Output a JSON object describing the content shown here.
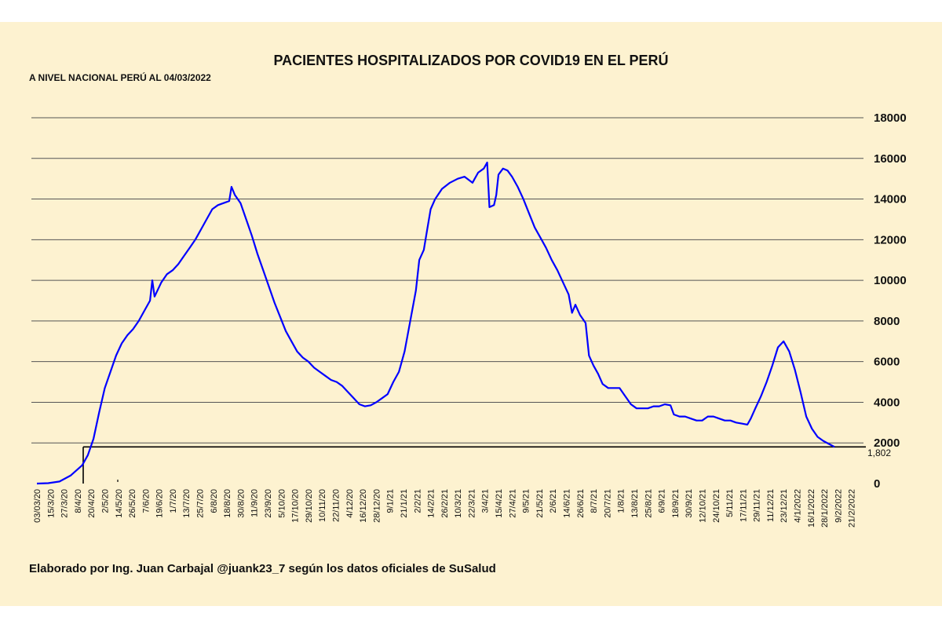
{
  "chart_data": {
    "type": "line",
    "title": "PACIENTES HOSPITALIZADOS POR COVID19 EN EL PERÚ",
    "subtitle": "A NIVEL NACIONAL PERÚ AL 04/03/2022",
    "credit": "Elaborado por Ing. Juan Carbajal @juank23_7 según los datos oficiales de SuSalud",
    "ylim": [
      0,
      18000
    ],
    "y_ticks": [
      "0",
      "2000",
      "4000",
      "6000",
      "8000",
      "10000",
      "12000",
      "14000",
      "16000",
      "18000"
    ],
    "x_ticks": [
      "03/03/20",
      "15/3/20",
      "27/3/20",
      "8/4/20",
      "20/4/20",
      "2/5/20",
      "14/5/20",
      "26/5/20",
      "7/6/20",
      "19/6/20",
      "1/7/20",
      "13/7/20",
      "25/7/20",
      "6/8/20",
      "18/8/20",
      "30/8/20",
      "11/9/20",
      "23/9/20",
      "5/10/20",
      "17/10/20",
      "29/10/20",
      "10/11/20",
      "22/11/20",
      "4/12/20",
      "16/12/20",
      "28/12/20",
      "9/1/21",
      "21/1/21",
      "2/2/21",
      "14/2/21",
      "26/2/21",
      "10/3/21",
      "22/3/21",
      "3/4/21",
      "15/4/21",
      "27/4/21",
      "9/5/21",
      "21/5/21",
      "2/6/21",
      "14/6/21",
      "26/6/21",
      "8/7/21",
      "20/7/21",
      "1/8/21",
      "13/8/21",
      "25/8/21",
      "6/9/21",
      "18/9/21",
      "30/9/21",
      "12/10/21",
      "24/10/21",
      "5/11/21",
      "17/11/21",
      "29/11/21",
      "11/12/21",
      "23/12/21",
      "4/1/2022",
      "16/1/2022",
      "28/1/2022",
      "9/2/2022",
      "21/2/2022"
    ],
    "x_tick_interval_days": 12,
    "total_days": 732,
    "series": [
      {
        "name": "Pacientes hospitalizados",
        "color": "#0000ff",
        "points": [
          [
            0,
            0
          ],
          [
            10,
            20
          ],
          [
            20,
            100
          ],
          [
            30,
            400
          ],
          [
            40,
            900
          ],
          [
            45,
            1400
          ],
          [
            50,
            2200
          ],
          [
            55,
            3500
          ],
          [
            60,
            4700
          ],
          [
            65,
            5500
          ],
          [
            70,
            6300
          ],
          [
            75,
            6900
          ],
          [
            80,
            7300
          ],
          [
            85,
            7600
          ],
          [
            90,
            8000
          ],
          [
            95,
            8500
          ],
          [
            100,
            9000
          ],
          [
            102,
            10000
          ],
          [
            104,
            9200
          ],
          [
            110,
            9900
          ],
          [
            115,
            10300
          ],
          [
            120,
            10500
          ],
          [
            125,
            10800
          ],
          [
            130,
            11200
          ],
          [
            135,
            11600
          ],
          [
            140,
            12000
          ],
          [
            145,
            12500
          ],
          [
            150,
            13000
          ],
          [
            155,
            13500
          ],
          [
            160,
            13700
          ],
          [
            165,
            13800
          ],
          [
            170,
            13900
          ],
          [
            172,
            14600
          ],
          [
            175,
            14200
          ],
          [
            180,
            13800
          ],
          [
            185,
            13000
          ],
          [
            190,
            12200
          ],
          [
            195,
            11300
          ],
          [
            200,
            10500
          ],
          [
            205,
            9700
          ],
          [
            210,
            8900
          ],
          [
            215,
            8200
          ],
          [
            220,
            7500
          ],
          [
            225,
            7000
          ],
          [
            230,
            6500
          ],
          [
            235,
            6200
          ],
          [
            240,
            6000
          ],
          [
            245,
            5700
          ],
          [
            250,
            5500
          ],
          [
            255,
            5300
          ],
          [
            260,
            5100
          ],
          [
            265,
            5000
          ],
          [
            270,
            4800
          ],
          [
            275,
            4500
          ],
          [
            280,
            4200
          ],
          [
            285,
            3900
          ],
          [
            290,
            3800
          ],
          [
            295,
            3850
          ],
          [
            300,
            4000
          ],
          [
            305,
            4200
          ],
          [
            310,
            4400
          ],
          [
            315,
            5000
          ],
          [
            320,
            5500
          ],
          [
            325,
            6500
          ],
          [
            330,
            8000
          ],
          [
            335,
            9500
          ],
          [
            338,
            11000
          ],
          [
            342,
            11500
          ],
          [
            345,
            12500
          ],
          [
            348,
            13500
          ],
          [
            352,
            14000
          ],
          [
            358,
            14500
          ],
          [
            365,
            14800
          ],
          [
            372,
            15000
          ],
          [
            378,
            15100
          ],
          [
            385,
            14800
          ],
          [
            390,
            15300
          ],
          [
            395,
            15500
          ],
          [
            398,
            15800
          ],
          [
            400,
            13600
          ],
          [
            404,
            13700
          ],
          [
            406,
            14200
          ],
          [
            408,
            15200
          ],
          [
            412,
            15500
          ],
          [
            416,
            15400
          ],
          [
            420,
            15100
          ],
          [
            425,
            14600
          ],
          [
            430,
            14000
          ],
          [
            435,
            13300
          ],
          [
            440,
            12600
          ],
          [
            445,
            12100
          ],
          [
            450,
            11600
          ],
          [
            455,
            11000
          ],
          [
            460,
            10500
          ],
          [
            465,
            9900
          ],
          [
            470,
            9300
          ],
          [
            473,
            8400
          ],
          [
            476,
            8800
          ],
          [
            480,
            8300
          ],
          [
            485,
            7900
          ],
          [
            488,
            6300
          ],
          [
            492,
            5800
          ],
          [
            496,
            5400
          ],
          [
            500,
            4900
          ],
          [
            505,
            4700
          ],
          [
            510,
            4700
          ],
          [
            515,
            4700
          ],
          [
            520,
            4300
          ],
          [
            525,
            3900
          ],
          [
            530,
            3700
          ],
          [
            535,
            3700
          ],
          [
            540,
            3700
          ],
          [
            545,
            3800
          ],
          [
            550,
            3800
          ],
          [
            555,
            3900
          ],
          [
            560,
            3850
          ],
          [
            563,
            3400
          ],
          [
            568,
            3300
          ],
          [
            573,
            3300
          ],
          [
            578,
            3200
          ],
          [
            583,
            3100
          ],
          [
            588,
            3100
          ],
          [
            593,
            3300
          ],
          [
            598,
            3300
          ],
          [
            603,
            3200
          ],
          [
            608,
            3100
          ],
          [
            613,
            3100
          ],
          [
            618,
            3000
          ],
          [
            623,
            2950
          ],
          [
            628,
            2900
          ],
          [
            631,
            3200
          ],
          [
            635,
            3700
          ],
          [
            640,
            4300
          ],
          [
            645,
            5000
          ],
          [
            650,
            5800
          ],
          [
            655,
            6700
          ],
          [
            660,
            7000
          ],
          [
            665,
            6500
          ],
          [
            670,
            5600
          ],
          [
            675,
            4500
          ],
          [
            680,
            3300
          ],
          [
            685,
            2700
          ],
          [
            690,
            2300
          ],
          [
            695,
            2100
          ],
          [
            700,
            1950
          ],
          [
            705,
            1802
          ]
        ]
      }
    ],
    "last_value_label": "1,802",
    "last_value": 1802
  }
}
